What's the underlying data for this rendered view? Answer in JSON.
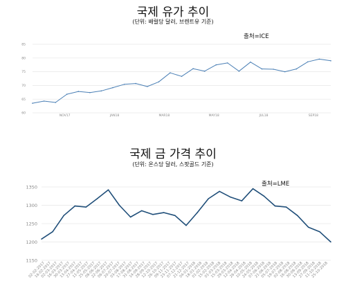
{
  "chart_data": [
    {
      "type": "line",
      "title": "국제 유가 추이",
      "subtitle": "(단위: 배럴당 달러, 브렌트유 기준)",
      "source": "출처=ICE",
      "xlabel": "",
      "ylabel": "",
      "ylim": [
        60,
        85
      ],
      "yticks": [
        60,
        65,
        70,
        75,
        80,
        85
      ],
      "xticks": [
        "NOV17",
        "JAN18",
        "MAR18",
        "MAY18",
        "JUL18",
        "SEP18"
      ],
      "grid": true,
      "color": "#4a7fb5",
      "x": [
        "2017-10-02",
        "2017-10-16",
        "2017-10-30",
        "2017-11-13",
        "2017-11-27",
        "2017-12-11",
        "2017-12-25",
        "2018-01-08",
        "2018-01-22",
        "2018-02-05",
        "2018-02-19",
        "2018-03-05",
        "2018-03-19",
        "2018-04-02",
        "2018-04-16",
        "2018-04-30",
        "2018-05-14",
        "2018-05-28",
        "2018-06-11",
        "2018-06-25",
        "2018-07-09",
        "2018-07-23",
        "2018-08-06",
        "2018-08-20",
        "2018-09-03",
        "2018-09-17",
        "2018-10-01"
      ],
      "values": [
        63.5,
        64.3,
        63.8,
        66.8,
        67.8,
        67.4,
        68.0,
        69.2,
        70.4,
        70.7,
        69.6,
        71.3,
        74.6,
        73.3,
        76.1,
        75.2,
        77.5,
        78.2,
        75.2,
        78.5,
        76.0,
        75.9,
        75.0,
        76.0,
        78.6,
        79.6,
        79.0
      ]
    },
    {
      "type": "line",
      "title": "국제 금 가격 추이",
      "subtitle": "(단위: 온스당 달러, 스팟골드 기준)",
      "source": "출처=LME",
      "xlabel": "",
      "ylabel": "",
      "ylim": [
        1150,
        1350
      ],
      "yticks": [
        1150,
        1200,
        1250,
        1300,
        1350
      ],
      "xticks": [
        "02-02-2017",
        "16-02-2017",
        "02-03-2017",
        "16-03-2017",
        "30-03-2017",
        "13-04-2017",
        "27-04-2017",
        "11-05-2017",
        "25-05-2017",
        "08-06-2017",
        "22-06-2017",
        "06-07-2017",
        "20-07-2017",
        "03-08-2017",
        "17-08-2017",
        "31-08-2017",
        "14-09-2017",
        "28-09-2017",
        "12-10-2017",
        "26-10-2017",
        "09-11-2017",
        "23-11-2017",
        "07-12-2017",
        "21-12-2017",
        "04-01-2018",
        "18-01-2018",
        "01-02-2018",
        "15-02-2018",
        "01-03-2018",
        "15-03-2018",
        "29-03-2018",
        "12-04-2018",
        "26-04-2018",
        "10-05-2018",
        "24-05-2018",
        "07-06-2018",
        "21-06-2018",
        "05-07-2018",
        "19-07-2018",
        "02-08-2018",
        "16-08-2018",
        "30-08-2018",
        "13-09-2018",
        "27-09-2018",
        "11-10-2018",
        "25-10-2018"
      ],
      "grid": true,
      "color": "#1f4e79",
      "x": [
        "2017-10-02",
        "2017-10-16",
        "2017-10-30",
        "2017-11-13",
        "2017-11-27",
        "2017-12-11",
        "2017-12-25",
        "2018-01-08",
        "2018-01-22",
        "2018-02-05",
        "2018-02-19",
        "2018-03-05",
        "2018-03-19",
        "2018-04-02",
        "2018-04-16",
        "2018-04-30",
        "2018-05-14",
        "2018-05-28",
        "2018-06-11",
        "2018-06-25",
        "2018-07-09",
        "2018-07-23",
        "2018-08-06",
        "2018-08-20",
        "2018-09-03",
        "2018-09-17",
        "2018-10-01"
      ],
      "values": [
        1208,
        1228,
        1272,
        1298,
        1295,
        1318,
        1342,
        1300,
        1268,
        1285,
        1275,
        1280,
        1272,
        1245,
        1280,
        1318,
        1338,
        1322,
        1312,
        1345,
        1325,
        1298,
        1295,
        1272,
        1240,
        1228,
        1200
      ]
    }
  ]
}
